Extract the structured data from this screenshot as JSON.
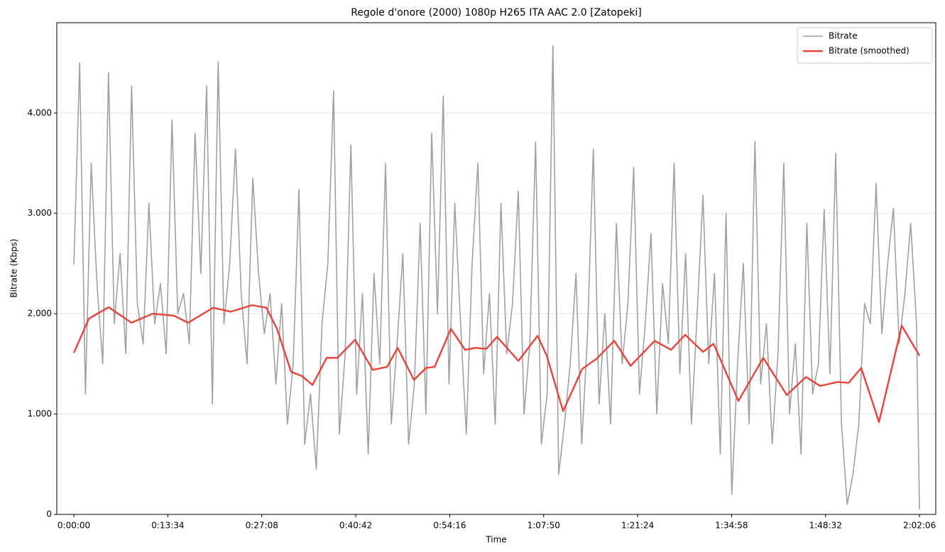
{
  "chart_data": {
    "type": "line",
    "title": "Regole d'onore (2000) 1080p H265 ITA AAC 2.0  [Zatopeki]",
    "x_label": "Time",
    "y_label": "Bitrate (Kbps)",
    "xlim": [
      -148,
      7467
    ],
    "ylim": [
      0,
      4900
    ],
    "xticks": [
      {
        "value": 0,
        "label": "0:00:00"
      },
      {
        "value": 814,
        "label": "0:13:34"
      },
      {
        "value": 1628,
        "label": "0:27:08"
      },
      {
        "value": 2442,
        "label": "0:40:42"
      },
      {
        "value": 3256,
        "label": "0:54:16"
      },
      {
        "value": 4070,
        "label": "1:07:50"
      },
      {
        "value": 4884,
        "label": "1:21:24"
      },
      {
        "value": 5698,
        "label": "1:34:58"
      },
      {
        "value": 6512,
        "label": "1:48:32"
      },
      {
        "value": 7326,
        "label": "2:02:06"
      }
    ],
    "yticks": [
      0,
      {
        "value": 1000,
        "label": "1.000"
      },
      {
        "value": 2000,
        "label": "2.000"
      },
      {
        "value": 3000,
        "label": "3.000"
      },
      {
        "value": 4000,
        "label": "4.000"
      }
    ],
    "grid": true,
    "legend": "upper right",
    "series": [
      {
        "name": "Bitrate",
        "color": "#a0a0a0",
        "width": 1.6,
        "x": [
          0,
          50,
          100,
          150,
          200,
          250,
          300,
          350,
          400,
          450,
          500,
          550,
          600,
          650,
          700,
          750,
          800,
          850,
          900,
          950,
          1000,
          1050,
          1100,
          1150,
          1200,
          1250,
          1300,
          1350,
          1400,
          1450,
          1500,
          1550,
          1600,
          1650,
          1700,
          1750,
          1800,
          1850,
          1900,
          1950,
          2000,
          2050,
          2100,
          2150,
          2200,
          2250,
          2300,
          2350,
          2400,
          2450,
          2500,
          2550,
          2600,
          2650,
          2700,
          2750,
          2800,
          2850,
          2900,
          2950,
          3000,
          3050,
          3100,
          3150,
          3200,
          3250,
          3300,
          3350,
          3400,
          3450,
          3500,
          3550,
          3600,
          3650,
          3700,
          3750,
          3800,
          3850,
          3900,
          3950,
          4000,
          4050,
          4100,
          4150,
          4200,
          4250,
          4300,
          4350,
          4400,
          4450,
          4500,
          4550,
          4600,
          4650,
          4700,
          4750,
          4800,
          4850,
          4900,
          4950,
          5000,
          5050,
          5100,
          5150,
          5200,
          5250,
          5300,
          5350,
          5400,
          5450,
          5500,
          5550,
          5600,
          5650,
          5700,
          5750,
          5800,
          5850,
          5900,
          5950,
          6000,
          6050,
          6100,
          6150,
          6200,
          6250,
          6300,
          6350,
          6400,
          6450,
          6500,
          6550,
          6600,
          6650,
          6700,
          6750,
          6800,
          6850,
          6900,
          6950,
          7000,
          7050,
          7100,
          7150,
          7200,
          7250,
          7300,
          7326
        ],
        "values": [
          2490,
          4500,
          1200,
          3500,
          2300,
          1500,
          4400,
          1900,
          2600,
          1600,
          4270,
          2100,
          1700,
          3100,
          1900,
          2300,
          1600,
          3930,
          2000,
          2200,
          1700,
          3800,
          2400,
          4270,
          1100,
          4510,
          1900,
          2500,
          3640,
          2200,
          1500,
          3350,
          2400,
          1800,
          2200,
          1300,
          2100,
          900,
          1500,
          3240,
          700,
          1200,
          450,
          1900,
          2500,
          4220,
          800,
          1600,
          3680,
          1200,
          2200,
          600,
          2400,
          1500,
          3500,
          900,
          1700,
          2600,
          700,
          1300,
          2900,
          1000,
          3800,
          2000,
          4170,
          1300,
          3100,
          1900,
          800,
          2500,
          3500,
          1400,
          2200,
          900,
          3100,
          1600,
          2100,
          3220,
          1000,
          1700,
          3710,
          700,
          1200,
          4670,
          400,
          900,
          1500,
          2400,
          700,
          1800,
          3640,
          1100,
          2000,
          900,
          2900,
          1500,
          2100,
          3460,
          1200,
          1900,
          2800,
          1000,
          2300,
          1700,
          3500,
          1400,
          2600,
          900,
          2000,
          3180,
          1500,
          2400,
          600,
          3000,
          200,
          1500,
          2500,
          900,
          3720,
          1300,
          1900,
          700,
          1600,
          3500,
          1000,
          1700,
          600,
          2900,
          1200,
          1500,
          3040,
          1400,
          3600,
          900,
          100,
          400,
          900,
          2100,
          1900,
          3300,
          1800,
          2500,
          3050,
          1700,
          2200,
          2900,
          1900,
          50
        ]
      },
      {
        "name": "Bitrate (smoothed)",
        "color": "#e8443a",
        "width": 2.4,
        "x": [
          0,
          129,
          301,
          498,
          683,
          867,
          990,
          1206,
          1359,
          1544,
          1667,
          1759,
          1882,
          1974,
          2067,
          2190,
          2282,
          2436,
          2590,
          2713,
          2805,
          2946,
          3051,
          3125,
          3266,
          3389,
          3482,
          3574,
          3666,
          3851,
          4017,
          4097,
          4238,
          4404,
          4527,
          4681,
          4822,
          5032,
          5173,
          5296,
          5450,
          5542,
          5757,
          5972,
          6176,
          6342,
          6465,
          6619,
          6711,
          6821,
          6975,
          7172,
          7326
        ],
        "values": [
          1610,
          1950,
          2065,
          1910,
          2000,
          1980,
          1910,
          2060,
          2020,
          2085,
          2060,
          1850,
          1420,
          1380,
          1290,
          1560,
          1560,
          1740,
          1440,
          1470,
          1660,
          1340,
          1460,
          1470,
          1850,
          1640,
          1660,
          1650,
          1770,
          1530,
          1780,
          1580,
          1030,
          1450,
          1550,
          1730,
          1480,
          1730,
          1640,
          1790,
          1620,
          1700,
          1130,
          1560,
          1190,
          1370,
          1280,
          1320,
          1310,
          1460,
          920,
          1880,
          1580
        ]
      }
    ]
  }
}
